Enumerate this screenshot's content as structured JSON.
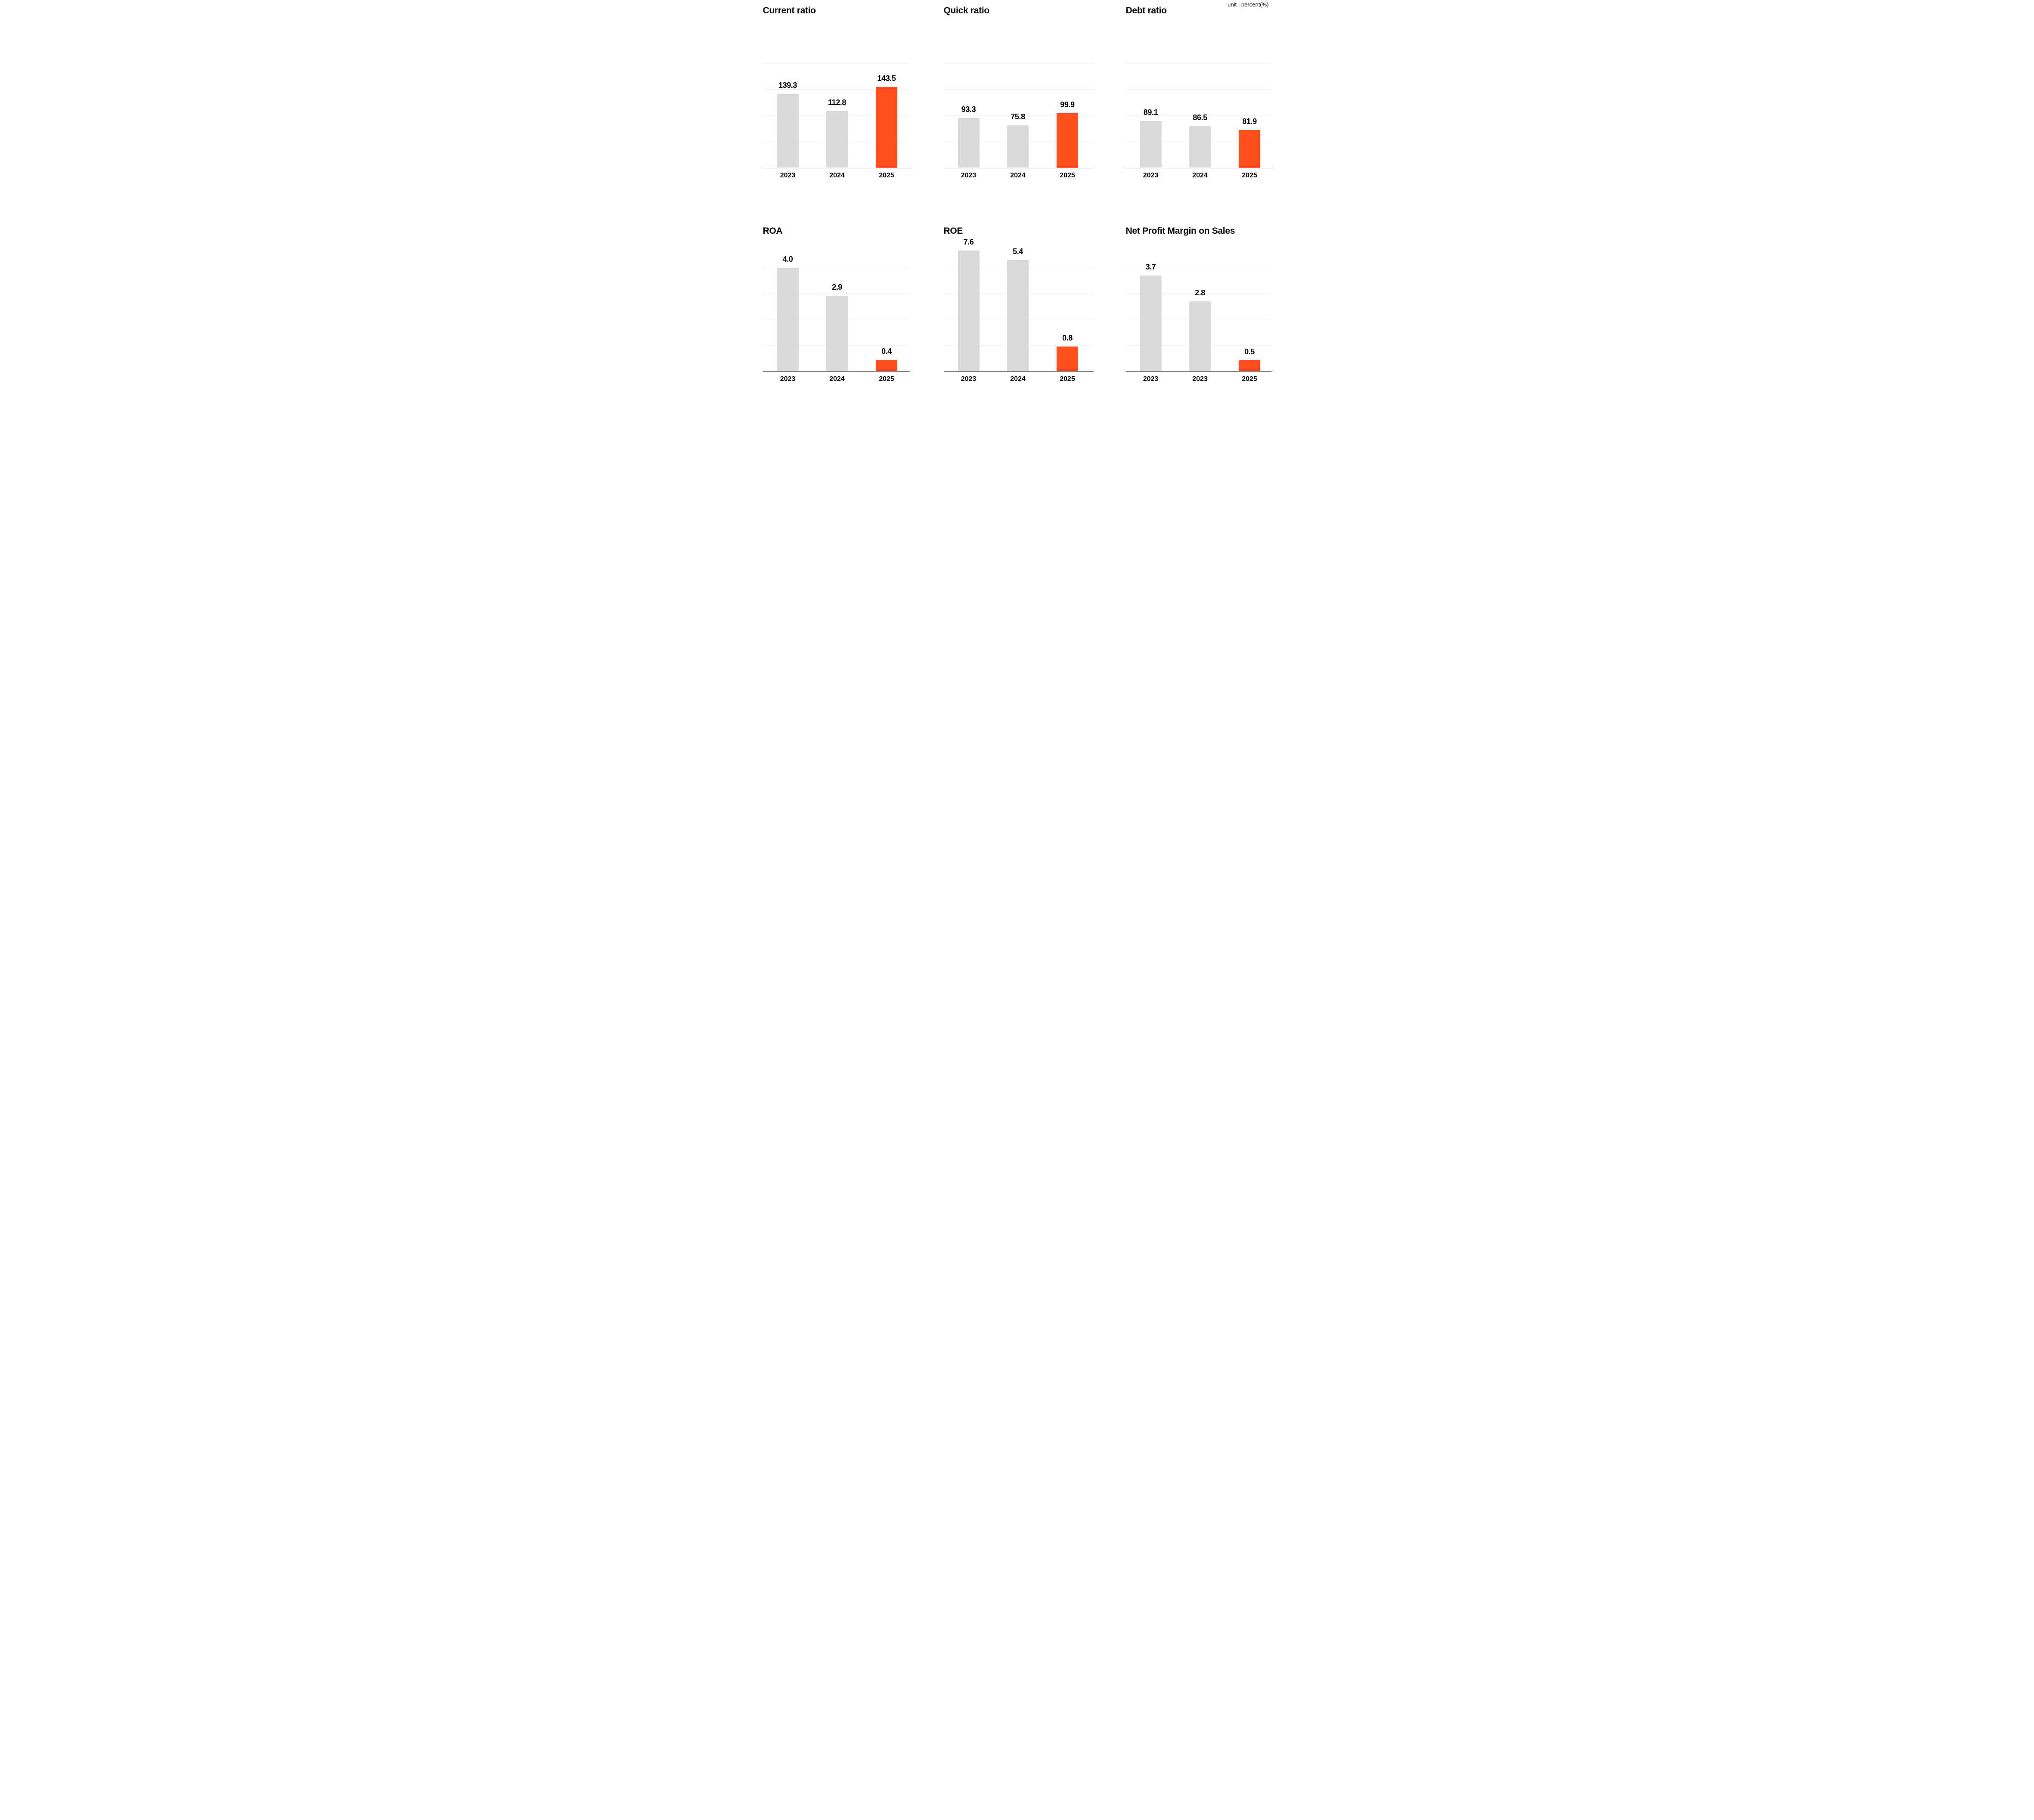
{
  "unit_label": "unit : percent(%)",
  "colors": {
    "accent_orange": "#FF4E1A",
    "bar_gray": "#D9D9D9",
    "gridline": "#EFEFEF",
    "axis_line": "#000000",
    "text": "#000000"
  },
  "chart_data": [
    {
      "type": "bar",
      "id": "current-ratio",
      "title": "Current ratio",
      "categories": [
        "2023",
        "2024",
        "2025"
      ],
      "values": [
        139.3,
        112.8,
        143.5
      ],
      "value_labels": [
        "139.3",
        "112.8",
        "143.5"
      ],
      "highlight_index": 2,
      "gridline_count": 4,
      "legend": "none",
      "grid": "horizontal"
    },
    {
      "type": "bar",
      "id": "quick-ratio",
      "title": "Quick ratio",
      "categories": [
        "2023",
        "2024",
        "2025"
      ],
      "values": [
        93.3,
        75.8,
        99.9
      ],
      "value_labels": [
        "93.3",
        "75.8",
        "99.9"
      ],
      "highlight_index": 2,
      "gridline_count": 4,
      "legend": "none",
      "grid": "horizontal"
    },
    {
      "type": "bar",
      "id": "debt-ratio",
      "title": "Debt ratio",
      "categories": [
        "2023",
        "2024",
        "2025"
      ],
      "values": [
        89.1,
        86.5,
        81.9
      ],
      "value_labels": [
        "89.1",
        "86.5",
        "81.9"
      ],
      "highlight_index": 2,
      "gridline_count": 4,
      "legend": "none",
      "grid": "horizontal"
    },
    {
      "type": "bar",
      "id": "roa",
      "title": "ROA",
      "categories": [
        "2023",
        "2024",
        "2025"
      ],
      "values": [
        4.0,
        2.9,
        0.4
      ],
      "value_labels": [
        "4.0",
        "2.9",
        "0.4"
      ],
      "highlight_index": 2,
      "gridline_count": 4,
      "legend": "none",
      "grid": "horizontal"
    },
    {
      "type": "bar",
      "id": "roe",
      "title": "ROE",
      "categories": [
        "2023",
        "2024",
        "2025"
      ],
      "values": [
        7.6,
        5.4,
        0.8
      ],
      "value_labels": [
        "7.6",
        "5.4",
        "0.8"
      ],
      "highlight_index": 2,
      "gridline_count": 4,
      "legend": "none",
      "grid": "horizontal"
    },
    {
      "type": "bar",
      "id": "net-profit-margin-on-sales",
      "title": "Net Profit Margin on Sales",
      "categories": [
        "2023",
        "2023",
        "2025"
      ],
      "values": [
        3.7,
        2.8,
        0.5
      ],
      "value_labels": [
        "3.7",
        "2.8",
        "0.5"
      ],
      "highlight_index": 2,
      "gridline_count": 4,
      "legend": "none",
      "grid": "horizontal"
    }
  ]
}
